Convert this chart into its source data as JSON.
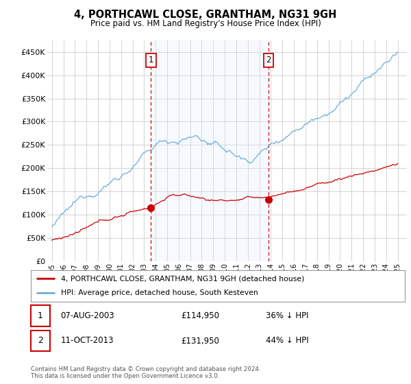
{
  "title": "4, PORTHCAWL CLOSE, GRANTHAM, NG31 9GH",
  "subtitle": "Price paid vs. HM Land Registry's House Price Index (HPI)",
  "ylabel_ticks": [
    "£0",
    "£50K",
    "£100K",
    "£150K",
    "£200K",
    "£250K",
    "£300K",
    "£350K",
    "£400K",
    "£450K"
  ],
  "ylabel_values": [
    0,
    50000,
    100000,
    150000,
    200000,
    250000,
    300000,
    350000,
    400000,
    450000
  ],
  "ylim": [
    0,
    475000
  ],
  "hpi_color": "#6baed6",
  "hpi_shade_color": "#ddeeff",
  "price_color": "#cc0000",
  "vline_color": "#cc0000",
  "grid_color": "#cccccc",
  "background_color": "#ffffff",
  "legend_label_red": "4, PORTHCAWL CLOSE, GRANTHAM, NG31 9GH (detached house)",
  "legend_label_blue": "HPI: Average price, detached house, South Kesteven",
  "transaction1_date": "07-AUG-2003",
  "transaction1_price": "£114,950",
  "transaction1_hpi": "36% ↓ HPI",
  "transaction2_date": "11-OCT-2013",
  "transaction2_price": "£131,950",
  "transaction2_hpi": "44% ↓ HPI",
  "footnote": "Contains HM Land Registry data © Crown copyright and database right 2024.\nThis data is licensed under the Open Government Licence v3.0.",
  "vline1_x": 2003.6,
  "vline2_x": 2013.8,
  "marker1_x": 2003.6,
  "marker1_y": 114950,
  "marker2_x": 2013.8,
  "marker2_y": 131950,
  "xmin": 1995,
  "xmax": 2025
}
